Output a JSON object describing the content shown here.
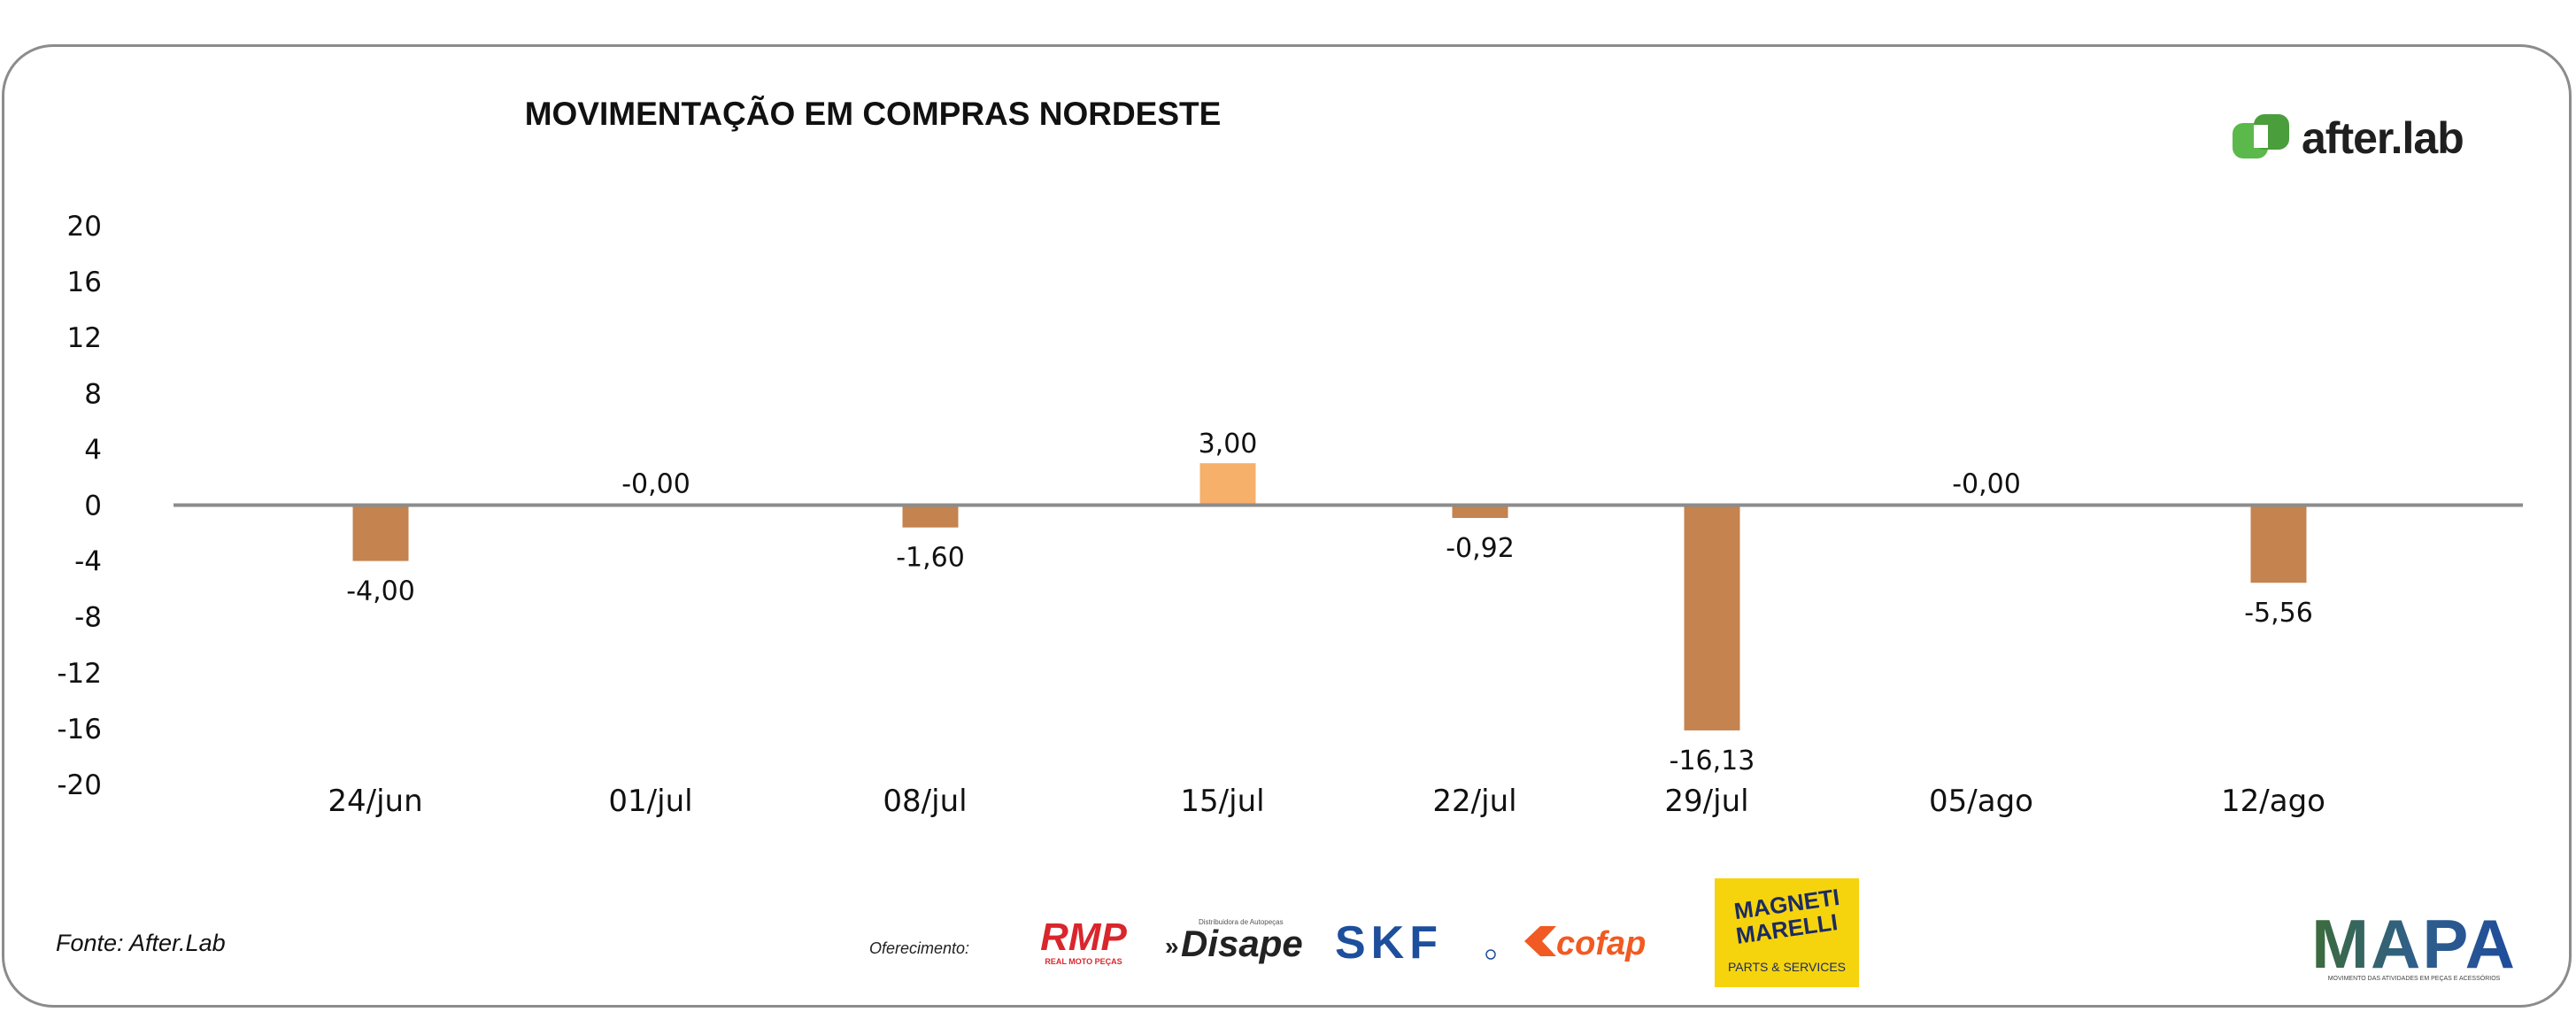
{
  "title": "MOVIMENTAÇÃO EM COMPRAS NORDESTE",
  "brand": {
    "name": "after.lab",
    "icon": "after-lab-logo-icon",
    "color": "#5bb84a"
  },
  "source": "Fonte: After.Lab",
  "sponsor_label": "Oferecimento:",
  "sponsors": {
    "rmp": {
      "text": "RMP",
      "subtext": "REAL MOTO PEÇAS",
      "color": "#d9262c"
    },
    "disape": {
      "text": "Disape",
      "subtext": "Distribuidora de Autopeças",
      "color": "#222222"
    },
    "skf": {
      "text": "SKF",
      "color": "#1d4f9c"
    },
    "cofap": {
      "text": "cofap",
      "color": "#f15a22"
    },
    "magneti": {
      "line1": "MAGNETI",
      "line2": "MARELLI",
      "subtext": "PARTS & SERVICES",
      "color": "#f6d40d"
    },
    "mapa": {
      "text": "MAPA",
      "subtext": "MOVIMENTO DAS ATIVIDADES EM PEÇAS E ACESSÓRIOS"
    }
  },
  "chart_data": {
    "type": "bar",
    "title": "MOVIMENTAÇÃO EM COMPRAS NORDESTE",
    "categories": [
      "24/jun",
      "01/jul",
      "08/jul",
      "15/jul",
      "22/jul",
      "29/jul",
      "05/ago",
      "12/ago"
    ],
    "values": [
      -4.0,
      -0.001,
      -1.6,
      3.0,
      -0.92,
      -16.13,
      -0.001,
      -5.56
    ],
    "labels": [
      "-4,00",
      "-0,00",
      "-1,60",
      "3,00",
      "-0,92",
      "-16,13",
      "-0,00",
      "-5,56"
    ],
    "ylim": [
      -20,
      20
    ],
    "yticks": [
      20,
      16,
      12,
      8,
      4,
      0,
      -4,
      -8,
      -12,
      -16,
      -20
    ],
    "ytick_labels": [
      "20",
      "16",
      "12",
      "8",
      "4",
      "0",
      "-4",
      "-8",
      "-12",
      "-16",
      "-20"
    ],
    "grid": false,
    "colors": {
      "negative": "#c4834f",
      "positive": "#f6b06a",
      "zero_line": "#8c8c8c"
    }
  }
}
